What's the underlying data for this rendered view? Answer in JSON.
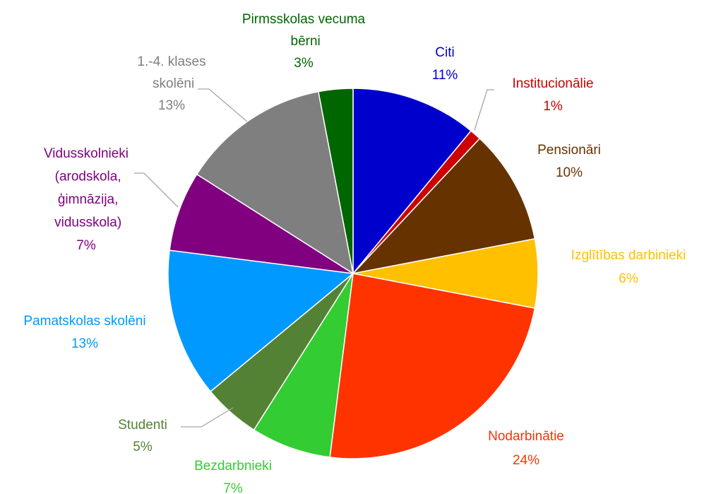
{
  "chart_data": {
    "type": "pie",
    "categories": [
      "Citi",
      "Institucionālie",
      "Pensionāri",
      "Izglītības darbinieki",
      "Nodarbinātie",
      "Bezdarbnieki",
      "Studenti",
      "Pamatskolas skolēni",
      "Vidusskolnieki (arodskola, ģimnāzija, vidusskola)",
      "1.-4. klases skolēni",
      "Pirmsskolas vecuma bērni"
    ],
    "values": [
      11,
      1,
      10,
      6,
      24,
      7,
      5,
      13,
      7,
      13,
      3
    ],
    "value_labels": [
      "11%",
      "1%",
      "10%",
      "6%",
      "24%",
      "7%",
      "5%",
      "13%",
      "7%",
      "13%",
      "3%"
    ],
    "colors": [
      "#0000cc",
      "#cc0000",
      "#663300",
      "#ffc000",
      "#ff3300",
      "#33cc33",
      "#548235",
      "#0099ff",
      "#800080",
      "#7f7f7f",
      "#006600"
    ]
  }
}
